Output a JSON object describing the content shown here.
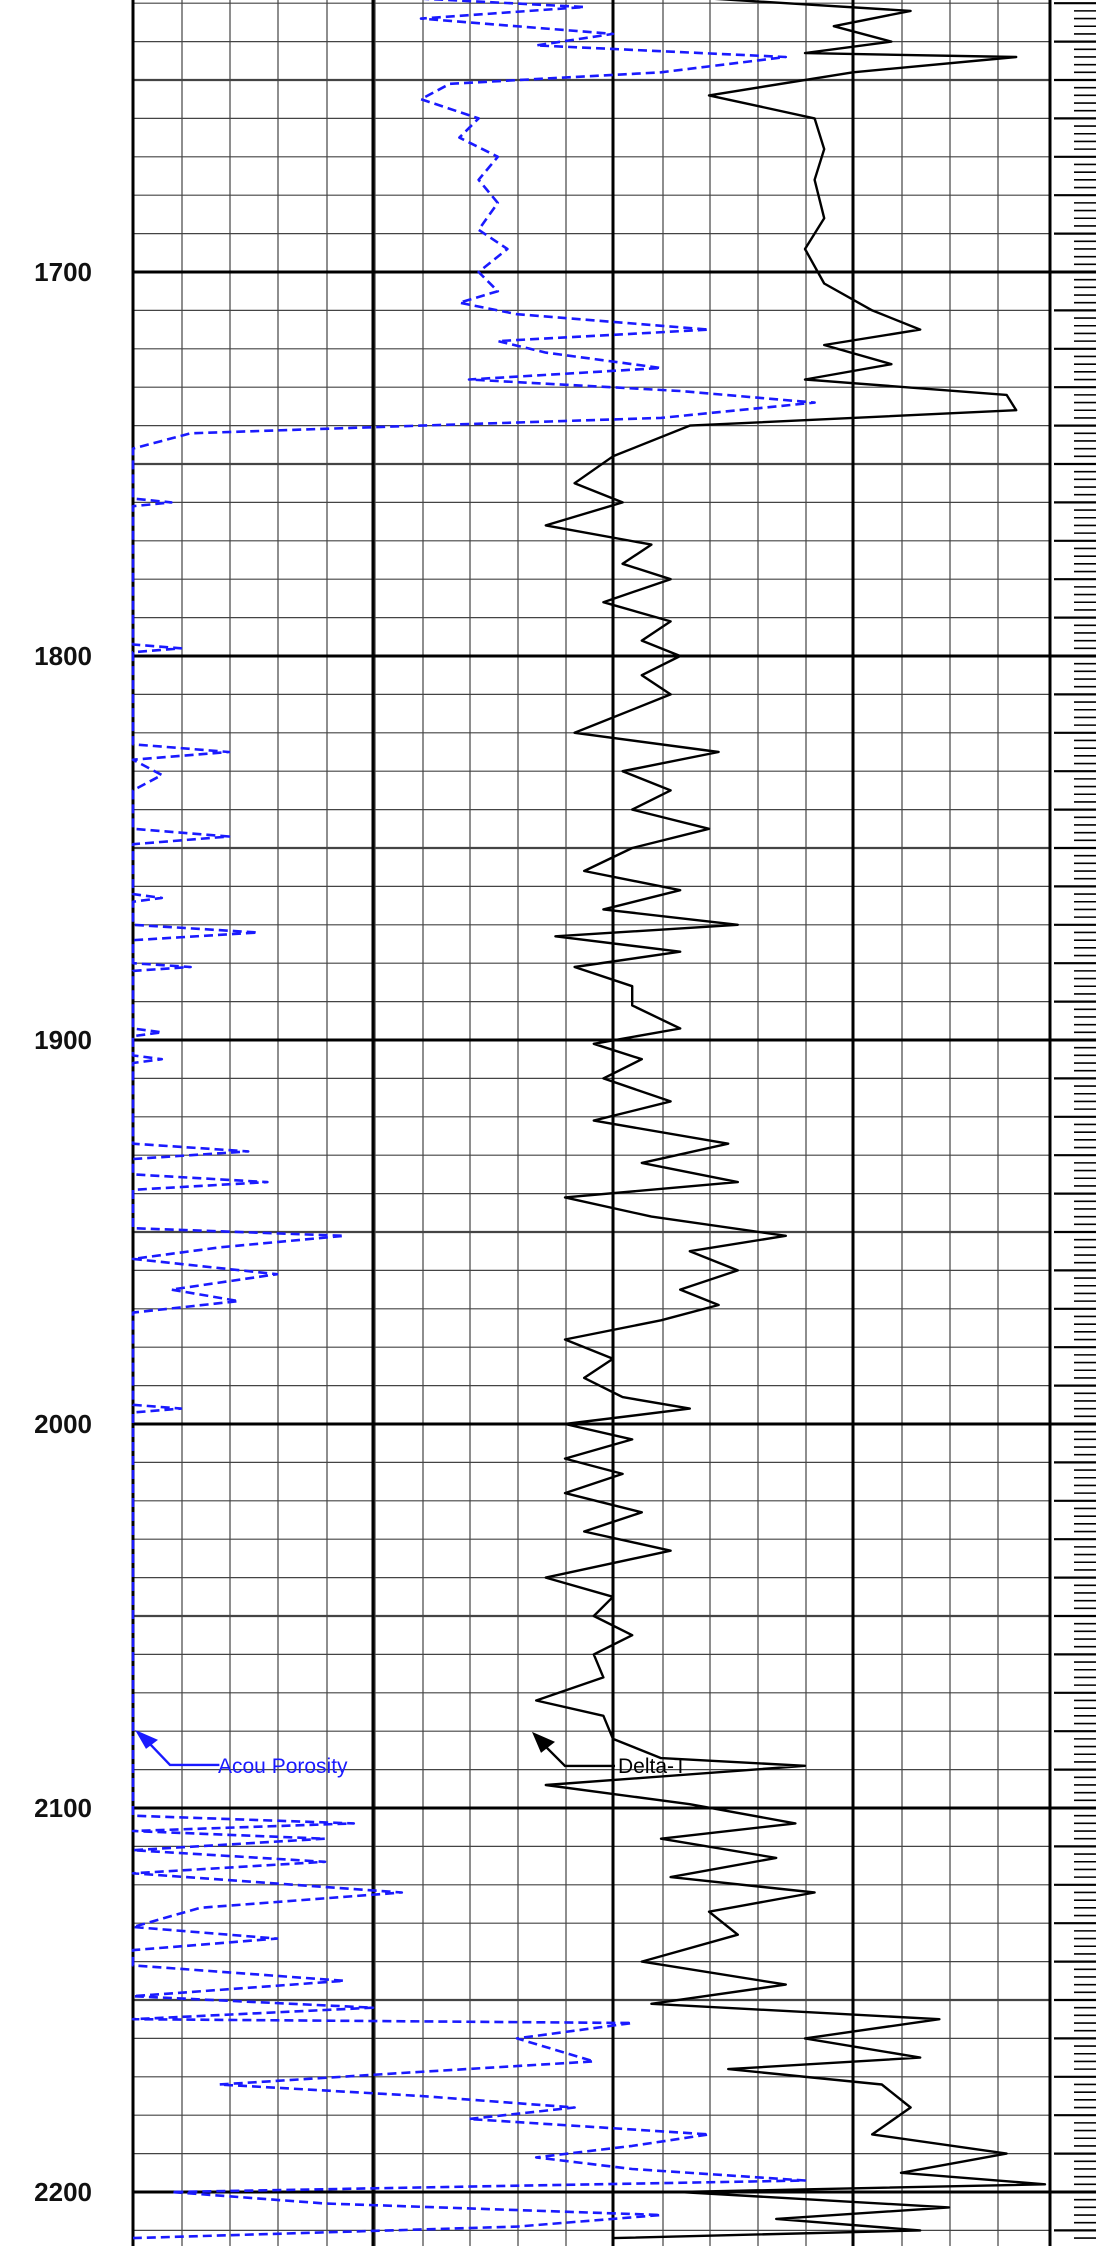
{
  "chart_data": {
    "type": "line",
    "title": "",
    "xlabel": "",
    "ylabel": "",
    "orientation": "vertical-depth",
    "y_axis": {
      "ylim": [
        1610,
        2212
      ],
      "ticks": [
        "1700",
        "1800",
        "1900",
        "2000",
        "2100",
        "2200"
      ],
      "inverted": true
    },
    "grid": true,
    "series": [
      {
        "name": "Acou Porosity",
        "color": "#1a1aff",
        "dash": true,
        "x_unit": "track_fraction",
        "points": [
          [
            0.0,
            1610
          ],
          [
            0.03,
            1611
          ],
          [
            0.0,
            1612
          ],
          [
            0.0,
            1624
          ],
          [
            0.16,
            1627
          ],
          [
            0.47,
            1631
          ],
          [
            0.3,
            1634
          ],
          [
            0.5,
            1638
          ],
          [
            0.42,
            1641
          ],
          [
            0.68,
            1644
          ],
          [
            0.55,
            1648
          ],
          [
            0.33,
            1651
          ],
          [
            0.3,
            1655
          ],
          [
            0.36,
            1660
          ],
          [
            0.34,
            1665
          ],
          [
            0.38,
            1670
          ],
          [
            0.36,
            1676
          ],
          [
            0.38,
            1682
          ],
          [
            0.36,
            1689
          ],
          [
            0.39,
            1694
          ],
          [
            0.36,
            1700
          ],
          [
            0.38,
            1705
          ],
          [
            0.34,
            1708
          ],
          [
            0.4,
            1711
          ],
          [
            0.6,
            1715
          ],
          [
            0.38,
            1718
          ],
          [
            0.43,
            1721
          ],
          [
            0.55,
            1725
          ],
          [
            0.35,
            1728
          ],
          [
            0.57,
            1731
          ],
          [
            0.71,
            1734
          ],
          [
            0.55,
            1738
          ],
          [
            0.3,
            1740
          ],
          [
            0.06,
            1742
          ],
          [
            0.0,
            1746
          ],
          [
            0.0,
            1759
          ],
          [
            0.04,
            1760
          ],
          [
            0.0,
            1761
          ],
          [
            0.0,
            1797
          ],
          [
            0.05,
            1798
          ],
          [
            0.0,
            1799
          ],
          [
            0.0,
            1823
          ],
          [
            0.1,
            1825
          ],
          [
            0.0,
            1827
          ],
          [
            0.03,
            1831
          ],
          [
            0.0,
            1835
          ],
          [
            0.0,
            1845
          ],
          [
            0.1,
            1847
          ],
          [
            0.0,
            1849
          ],
          [
            0.0,
            1862
          ],
          [
            0.03,
            1863
          ],
          [
            0.0,
            1864
          ],
          [
            0.0,
            1870
          ],
          [
            0.13,
            1872
          ],
          [
            0.0,
            1874
          ],
          [
            0.0,
            1880
          ],
          [
            0.06,
            1881
          ],
          [
            0.0,
            1882
          ],
          [
            0.0,
            1897
          ],
          [
            0.03,
            1898
          ],
          [
            0.0,
            1899
          ],
          [
            0.0,
            1904
          ],
          [
            0.03,
            1905
          ],
          [
            0.0,
            1906
          ],
          [
            0.0,
            1927
          ],
          [
            0.12,
            1929
          ],
          [
            0.0,
            1931
          ],
          [
            0.0,
            1935
          ],
          [
            0.14,
            1937
          ],
          [
            0.0,
            1939
          ],
          [
            0.0,
            1949
          ],
          [
            0.22,
            1951
          ],
          [
            0.09,
            1954
          ],
          [
            0.0,
            1957
          ],
          [
            0.15,
            1961
          ],
          [
            0.04,
            1965
          ],
          [
            0.11,
            1968
          ],
          [
            0.0,
            1971
          ],
          [
            0.0,
            1995
          ],
          [
            0.05,
            1996
          ],
          [
            0.0,
            1997
          ],
          [
            0.0,
            2102
          ],
          [
            0.23,
            2104
          ],
          [
            0.0,
            2106
          ],
          [
            0.2,
            2108
          ],
          [
            0.0,
            2111
          ],
          [
            0.2,
            2114
          ],
          [
            0.0,
            2117
          ],
          [
            0.28,
            2122
          ],
          [
            0.07,
            2126
          ],
          [
            0.0,
            2131
          ],
          [
            0.15,
            2134
          ],
          [
            0.0,
            2137
          ],
          [
            0.0,
            2141
          ],
          [
            0.22,
            2145
          ],
          [
            0.0,
            2149
          ],
          [
            0.25,
            2152
          ],
          [
            0.0,
            2155
          ],
          [
            0.52,
            2156
          ],
          [
            0.4,
            2160
          ],
          [
            0.48,
            2166
          ],
          [
            0.28,
            2169
          ],
          [
            0.09,
            2172
          ],
          [
            0.3,
            2175
          ],
          [
            0.46,
            2178
          ],
          [
            0.35,
            2181
          ],
          [
            0.6,
            2185
          ],
          [
            0.52,
            2188
          ],
          [
            0.42,
            2191
          ],
          [
            0.52,
            2194
          ],
          [
            0.7,
            2197
          ],
          [
            0.04,
            2200
          ],
          [
            0.2,
            2203
          ],
          [
            0.55,
            2206
          ],
          [
            0.4,
            2209
          ],
          [
            0.0,
            2212
          ]
        ]
      },
      {
        "name": "Delta-T",
        "color": "#000000",
        "dash": false,
        "x_unit": "track_fraction",
        "points": [
          [
            0.54,
            1610
          ],
          [
            0.3,
            1614
          ],
          [
            0.3,
            1620
          ],
          [
            0.55,
            1628
          ],
          [
            0.81,
            1632
          ],
          [
            0.73,
            1636
          ],
          [
            0.79,
            1640
          ],
          [
            0.7,
            1643
          ],
          [
            0.92,
            1644
          ],
          [
            0.75,
            1648
          ],
          [
            0.6,
            1654
          ],
          [
            0.71,
            1660
          ],
          [
            0.72,
            1668
          ],
          [
            0.71,
            1676
          ],
          [
            0.72,
            1686
          ],
          [
            0.7,
            1694
          ],
          [
            0.72,
            1703
          ],
          [
            0.77,
            1710
          ],
          [
            0.82,
            1715
          ],
          [
            0.72,
            1719
          ],
          [
            0.79,
            1724
          ],
          [
            0.7,
            1728
          ],
          [
            0.91,
            1732
          ],
          [
            0.92,
            1736
          ],
          [
            0.58,
            1740
          ],
          [
            0.5,
            1748
          ],
          [
            0.46,
            1755
          ],
          [
            0.51,
            1760
          ],
          [
            0.43,
            1766
          ],
          [
            0.54,
            1771
          ],
          [
            0.51,
            1776
          ],
          [
            0.56,
            1780
          ],
          [
            0.49,
            1786
          ],
          [
            0.56,
            1791
          ],
          [
            0.53,
            1796
          ],
          [
            0.57,
            1800
          ],
          [
            0.53,
            1805
          ],
          [
            0.56,
            1810
          ],
          [
            0.46,
            1820
          ],
          [
            0.61,
            1825
          ],
          [
            0.51,
            1830
          ],
          [
            0.56,
            1835
          ],
          [
            0.52,
            1840
          ],
          [
            0.6,
            1845
          ],
          [
            0.52,
            1850
          ],
          [
            0.47,
            1856
          ],
          [
            0.57,
            1861
          ],
          [
            0.49,
            1866
          ],
          [
            0.63,
            1870
          ],
          [
            0.44,
            1873
          ],
          [
            0.57,
            1877
          ],
          [
            0.46,
            1881
          ],
          [
            0.52,
            1886
          ],
          [
            0.52,
            1891
          ],
          [
            0.57,
            1897
          ],
          [
            0.48,
            1901
          ],
          [
            0.53,
            1905
          ],
          [
            0.49,
            1910
          ],
          [
            0.56,
            1916
          ],
          [
            0.48,
            1921
          ],
          [
            0.62,
            1927
          ],
          [
            0.53,
            1932
          ],
          [
            0.63,
            1937
          ],
          [
            0.45,
            1941
          ],
          [
            0.54,
            1946
          ],
          [
            0.68,
            1951
          ],
          [
            0.58,
            1955
          ],
          [
            0.63,
            1960
          ],
          [
            0.57,
            1965
          ],
          [
            0.61,
            1969
          ],
          [
            0.55,
            1973
          ],
          [
            0.45,
            1978
          ],
          [
            0.5,
            1983
          ],
          [
            0.47,
            1988
          ],
          [
            0.51,
            1993
          ],
          [
            0.58,
            1996
          ],
          [
            0.45,
            2000
          ],
          [
            0.52,
            2004
          ],
          [
            0.45,
            2009
          ],
          [
            0.51,
            2013
          ],
          [
            0.45,
            2018
          ],
          [
            0.53,
            2023
          ],
          [
            0.47,
            2028
          ],
          [
            0.56,
            2033
          ],
          [
            0.43,
            2040
          ],
          [
            0.5,
            2045
          ],
          [
            0.48,
            2050
          ],
          [
            0.52,
            2055
          ],
          [
            0.48,
            2060
          ],
          [
            0.49,
            2066
          ],
          [
            0.42,
            2072
          ],
          [
            0.49,
            2076
          ],
          [
            0.5,
            2082
          ],
          [
            0.55,
            2087
          ],
          [
            0.7,
            2089
          ],
          [
            0.43,
            2094
          ],
          [
            0.58,
            2099
          ],
          [
            0.69,
            2104
          ],
          [
            0.55,
            2108
          ],
          [
            0.67,
            2113
          ],
          [
            0.56,
            2118
          ],
          [
            0.71,
            2122
          ],
          [
            0.6,
            2127
          ],
          [
            0.63,
            2133
          ],
          [
            0.53,
            2140
          ],
          [
            0.68,
            2146
          ],
          [
            0.54,
            2151
          ],
          [
            0.84,
            2155
          ],
          [
            0.7,
            2160
          ],
          [
            0.82,
            2165
          ],
          [
            0.62,
            2168
          ],
          [
            0.78,
            2172
          ],
          [
            0.81,
            2178
          ],
          [
            0.77,
            2185
          ],
          [
            0.91,
            2190
          ],
          [
            0.8,
            2195
          ],
          [
            0.95,
            2198
          ],
          [
            0.57,
            2200
          ],
          [
            0.85,
            2204
          ],
          [
            0.67,
            2207
          ],
          [
            0.82,
            2210
          ],
          [
            0.5,
            2212
          ]
        ]
      }
    ],
    "annotations": [
      {
        "text": "Acou Porosity",
        "depth": 2088,
        "track_fraction": 0.02
      },
      {
        "text": "Delta-T",
        "depth": 2088,
        "track_fraction": 0.52
      }
    ]
  }
}
